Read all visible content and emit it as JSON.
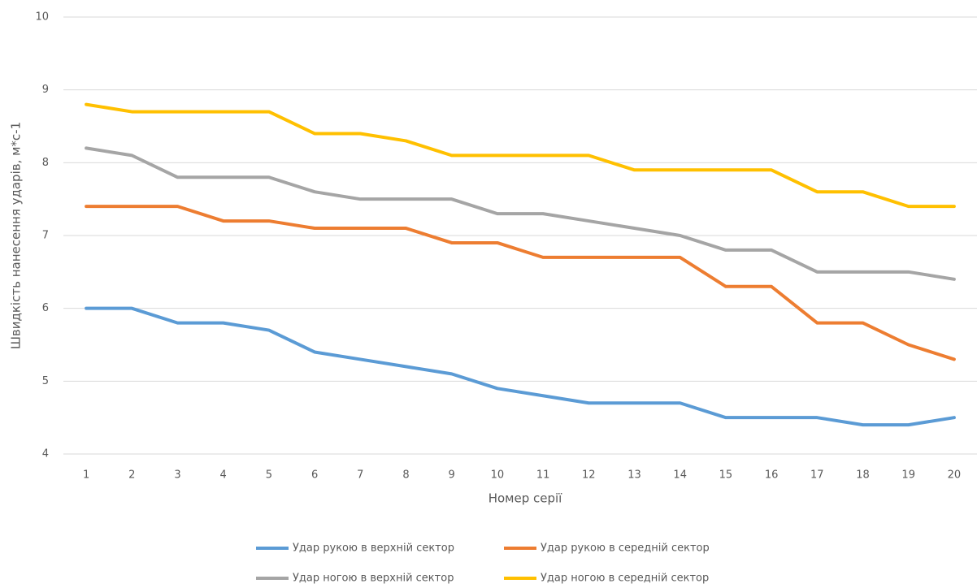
{
  "chart_data": {
    "type": "line",
    "x_label": "Номер серії",
    "y_label": "Швидкість нанесення ударів, м*с-1",
    "categories": [
      1,
      2,
      3,
      4,
      5,
      6,
      7,
      8,
      9,
      10,
      11,
      12,
      13,
      14,
      15,
      16,
      17,
      18,
      19,
      20
    ],
    "series": [
      {
        "name": "Удар рукою в верхній сектор",
        "color": "#5b9bd5",
        "values": [
          6,
          6,
          5.8,
          5.8,
          5.7,
          5.4,
          5.3,
          5.2,
          5.1,
          4.9,
          4.8,
          4.7,
          4.7,
          4.7,
          4.5,
          4.5,
          4.5,
          4.4,
          4.4,
          4.5
        ]
      },
      {
        "name": "Удар рукою в середній сектор",
        "color": "#ed7d31",
        "values": [
          7.4,
          7.4,
          7.4,
          7.2,
          7.2,
          7.1,
          7.1,
          7.1,
          6.9,
          6.9,
          6.7,
          6.7,
          6.7,
          6.7,
          6.3,
          6.3,
          5.8,
          5.8,
          5.5,
          5.3
        ]
      },
      {
        "name": "Удар ногою в верхній сектор",
        "color": "#a5a5a5",
        "values": [
          8.2,
          8.1,
          7.8,
          7.8,
          7.8,
          7.6,
          7.5,
          7.5,
          7.5,
          7.3,
          7.3,
          7.2,
          7.1,
          7.0,
          6.8,
          6.8,
          6.5,
          6.5,
          6.5,
          6.4
        ]
      },
      {
        "name": "Удар ногою в середній сектор",
        "color": "#ffc000",
        "values": [
          8.8,
          8.7,
          8.7,
          8.7,
          8.7,
          8.4,
          8.4,
          8.3,
          8.1,
          8.1,
          8.1,
          8.1,
          7.9,
          7.9,
          7.9,
          7.9,
          7.6,
          7.6,
          7.4,
          7.4
        ]
      }
    ],
    "ylim": [
      4,
      10
    ],
    "yticks": [
      4,
      5,
      6,
      7,
      8,
      9,
      10
    ],
    "grid": true,
    "legend": "bottom"
  }
}
